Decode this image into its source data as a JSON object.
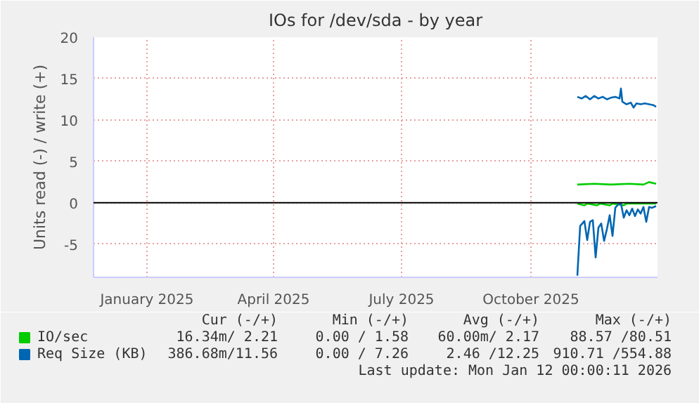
{
  "chart_data": {
    "type": "line",
    "title": "IOs for /dev/sda - by year",
    "ylabel": "Units read (-) / write (+)",
    "xlim": [
      "2024-11-24",
      "2025-12-30"
    ],
    "xticks": [
      {
        "value": "2025-01-01",
        "label": "January 2025"
      },
      {
        "value": "2025-04-01",
        "label": "April 2025"
      },
      {
        "value": "2025-07-01",
        "label": "July 2025"
      },
      {
        "value": "2025-10-01",
        "label": "October 2025"
      }
    ],
    "ylim": [
      -9,
      20
    ],
    "yticks": [
      -5,
      0,
      5,
      10,
      15,
      20
    ],
    "grid": true,
    "legend": "bottom",
    "ref_lines": [
      {
        "axis": "y",
        "value": 0,
        "color": "#000000"
      }
    ],
    "series": [
      {
        "name": "IO/sec",
        "color": "#00cc00",
        "x": [
          "2025-11-03",
          "2025-11-15",
          "2025-11-27",
          "2025-12-10",
          "2025-12-20",
          "2025-12-24",
          "2025-12-29"
        ],
        "values": [
          2.2,
          2.3,
          2.2,
          2.3,
          2.2,
          2.5,
          2.3
        ]
      },
      {
        "color": "#00cc00",
        "x": [
          "2025-11-03",
          "2025-11-08",
          "2025-11-10",
          "2025-11-17",
          "2025-11-19",
          "2025-11-26",
          "2025-11-28",
          "2025-12-06",
          "2025-12-08",
          "2025-12-29"
        ],
        "values": [
          -0.1,
          -0.3,
          -0.1,
          -0.3,
          -0.1,
          -0.3,
          -0.1,
          -0.3,
          -0.1,
          -0.1
        ]
      },
      {
        "name": "Req Size (KB)",
        "color": "#0066b3",
        "x": [
          "2025-11-03",
          "2025-11-06",
          "2025-11-09",
          "2025-11-12",
          "2025-11-15",
          "2025-11-18",
          "2025-11-21",
          "2025-11-24",
          "2025-11-27",
          "2025-11-30",
          "2025-12-03",
          "2025-12-04",
          "2025-12-05",
          "2025-12-08",
          "2025-12-11",
          "2025-12-13",
          "2025-12-15",
          "2025-12-18",
          "2025-12-21",
          "2025-12-24",
          "2025-12-27",
          "2025-12-29"
        ],
        "values": [
          12.8,
          12.6,
          12.9,
          12.5,
          12.9,
          12.6,
          12.8,
          12.5,
          12.7,
          12.8,
          12.6,
          13.8,
          12.2,
          11.9,
          12.1,
          11.5,
          12.0,
          11.9,
          12.0,
          11.9,
          11.8,
          11.6
        ]
      },
      {
        "color": "#0066b3",
        "x": [
          "2025-11-03",
          "2025-11-05",
          "2025-11-08",
          "2025-11-10",
          "2025-11-12",
          "2025-11-14",
          "2025-11-16",
          "2025-11-18",
          "2025-11-20",
          "2025-11-22",
          "2025-11-24",
          "2025-11-26",
          "2025-11-28",
          "2025-11-30",
          "2025-12-02",
          "2025-12-04",
          "2025-12-06",
          "2025-12-08",
          "2025-12-10",
          "2025-12-12",
          "2025-12-14",
          "2025-12-16",
          "2025-12-18",
          "2025-12-20",
          "2025-12-22",
          "2025-12-24",
          "2025-12-26",
          "2025-12-29"
        ],
        "values": [
          -8.8,
          -2.8,
          -2.2,
          -4.5,
          -2.3,
          -2.1,
          -6.6,
          -3.0,
          -2.5,
          -4.6,
          -3.2,
          -1.5,
          -4.0,
          -0.6,
          -0.2,
          -0.1,
          -1.8,
          -0.9,
          -1.5,
          -0.7,
          -1.6,
          -0.8,
          -1.3,
          -0.5,
          -2.3,
          -0.5,
          -0.6,
          -0.4
        ]
      }
    ],
    "annotations": [
      "Cur (-/+)",
      "Min (-/+)",
      "Avg (-/+)",
      "Max (-/+)",
      "16.34m/ 2.21",
      "0.00 / 1.58",
      "60.00m/ 2.17",
      "88.57 /80.51",
      "386.68m/11.56",
      "0.00 / 7.26",
      "2.46 /12.25",
      "910.71 /554.88",
      "Last update: Mon Jan 12 00:00:11 2026"
    ]
  }
}
